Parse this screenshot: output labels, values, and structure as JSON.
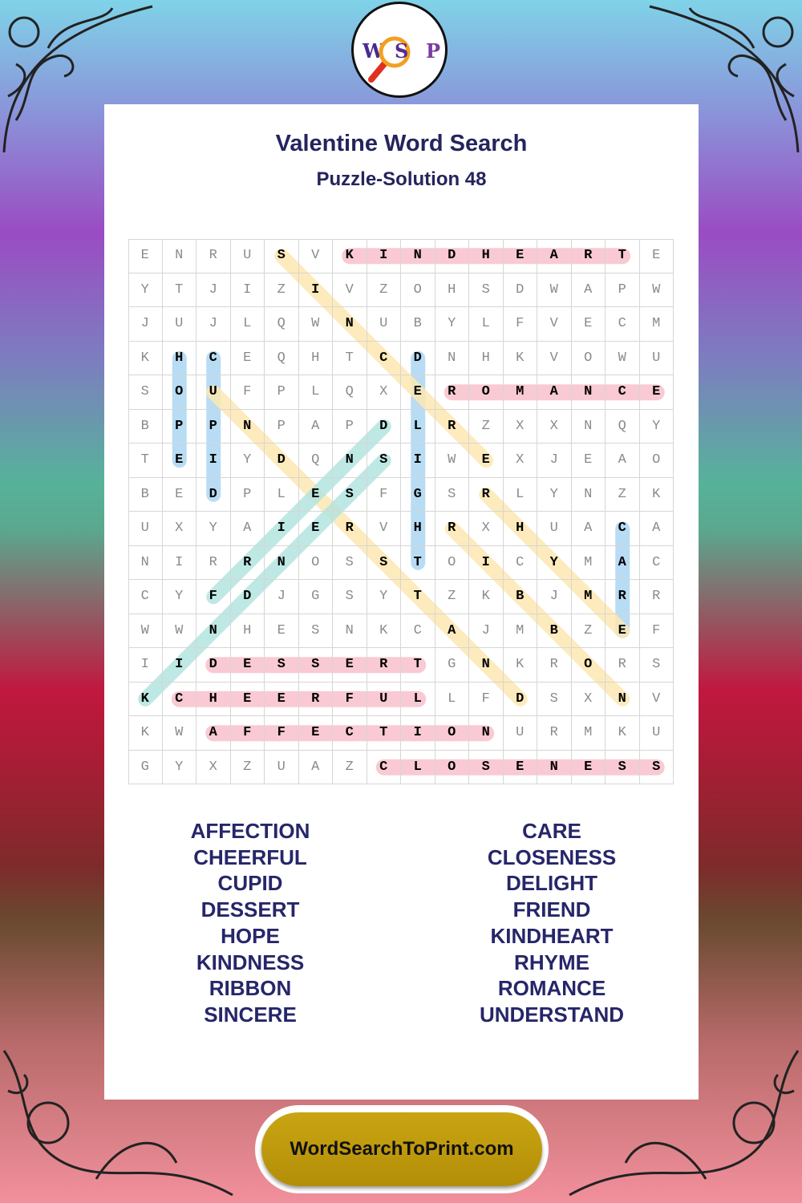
{
  "logo": {
    "letters": [
      "W",
      "S",
      "P"
    ]
  },
  "title": "Valentine Word Search",
  "subtitle": "Puzzle-Solution 48",
  "grid": [
    "ENRUSVKINDHEARTE",
    "YTJIZIVZOHSDWAPW",
    "JUJLQWNUBYLFVECM",
    "KHCEQHTCDNHKVOWU",
    "SOUFPLQXEROMANCE",
    "BPPNPAPDLRZXXNQY",
    "TEIYDQNSIWEXJEAO",
    "BEDPLESFGSRLYNZK",
    "UXYAIERVHRXHUACA",
    "NIRRNOSSTOICYMAC",
    "CYFDJGSYTZKBJMRR",
    "WWNHESNKCAJMBZEF",
    "IIDESSERTGNKRORS",
    "KCHEERFULLFDSXNV",
    "KWAFFECTIONURMKU",
    "GYXZUAZCLOSENESS"
  ],
  "highlight_colors": {
    "pink": "#f9c1cc",
    "blue": "#acd6f2",
    "yellow": "#fde8b2",
    "teal": "#b3e4df"
  },
  "solutions": [
    {
      "word": "KINDHEART",
      "start": [
        0,
        6
      ],
      "end": [
        0,
        14
      ],
      "color": "pink"
    },
    {
      "word": "ROMANCE",
      "start": [
        4,
        9
      ],
      "end": [
        4,
        15
      ],
      "color": "pink"
    },
    {
      "word": "DESSERT",
      "start": [
        12,
        2
      ],
      "end": [
        12,
        8
      ],
      "color": "pink"
    },
    {
      "word": "CHEERFUL",
      "start": [
        13,
        1
      ],
      "end": [
        13,
        8
      ],
      "color": "pink"
    },
    {
      "word": "AFFECTION",
      "start": [
        14,
        2
      ],
      "end": [
        14,
        10
      ],
      "color": "pink"
    },
    {
      "word": "CLOSENESS",
      "start": [
        15,
        7
      ],
      "end": [
        15,
        15
      ],
      "color": "pink"
    },
    {
      "word": "HOPE",
      "start": [
        3,
        1
      ],
      "end": [
        6,
        1
      ],
      "color": "blue"
    },
    {
      "word": "CUPID",
      "start": [
        3,
        2
      ],
      "end": [
        7,
        2
      ],
      "color": "blue"
    },
    {
      "word": "DELIGHT",
      "start": [
        3,
        8
      ],
      "end": [
        9,
        8
      ],
      "color": "blue"
    },
    {
      "word": "CARE",
      "start": [
        8,
        14
      ],
      "end": [
        11,
        14
      ],
      "color": "blue"
    },
    {
      "word": "SINCERE",
      "start": [
        0,
        4
      ],
      "end": [
        6,
        10
      ],
      "color": "yellow"
    },
    {
      "word": "UNDERSTAND",
      "start": [
        4,
        2
      ],
      "end": [
        13,
        11
      ],
      "color": "yellow"
    },
    {
      "word": "RHYME",
      "start": [
        7,
        10
      ],
      "end": [
        11,
        14
      ],
      "color": "yellow"
    },
    {
      "word": "RIBBON",
      "start": [
        8,
        9
      ],
      "end": [
        13,
        14
      ],
      "color": "yellow"
    },
    {
      "word": "FRIEND",
      "start": [
        10,
        2
      ],
      "end": [
        5,
        7
      ],
      "color": "teal"
    },
    {
      "word": "KINDNESS",
      "start": [
        13,
        0
      ],
      "end": [
        6,
        7
      ],
      "color": "teal"
    }
  ],
  "word_list": {
    "left": [
      "AFFECTION",
      "CHEERFUL",
      "CUPID",
      "DESSERT",
      "HOPE",
      "KINDNESS",
      "RIBBON",
      "SINCERE"
    ],
    "right": [
      "CARE",
      "CLOSENESS",
      "DELIGHT",
      "FRIEND",
      "KINDHEART",
      "RHYME",
      "ROMANCE",
      "UNDERSTAND"
    ]
  },
  "footer": {
    "site": "WordSearchToPrint.com"
  }
}
